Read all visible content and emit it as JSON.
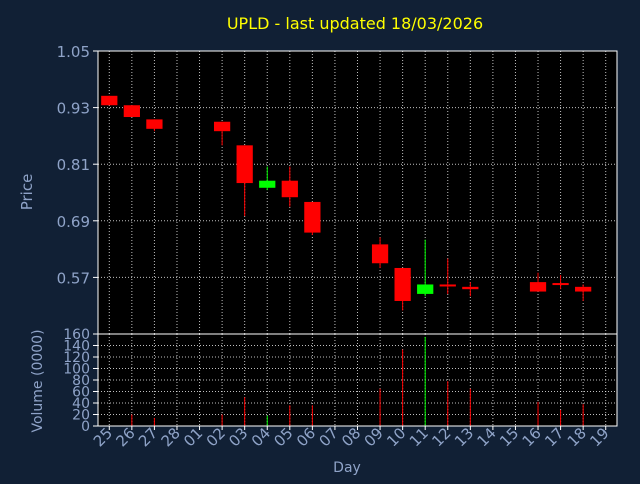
{
  "title": "UPLD - last updated 18/03/2026",
  "colors": {
    "background": "#112035",
    "plot_background": "#000000",
    "grid": "#ffffff",
    "axis_text": "#8fa3c8",
    "title_text": "#ffff00",
    "label_text": "#8fa3c8",
    "up": "#00ff00",
    "down": "#ff0000"
  },
  "chart_data": [
    {
      "type": "candlestick",
      "ylabel": "Price",
      "ylim": [
        0.45,
        1.05
      ],
      "yticks": [
        "0.57",
        "0.69",
        "0.81",
        "0.93",
        "1.05"
      ],
      "grid": true,
      "x_ticks": [
        "25",
        "26",
        "27",
        "28",
        "01",
        "02",
        "03",
        "04",
        "05",
        "06",
        "07",
        "08",
        "09",
        "10",
        "11",
        "12",
        "13",
        "14",
        "15",
        "16",
        "17",
        "18",
        "19"
      ],
      "candles": [
        {
          "day": "25",
          "open": 0.955,
          "high": 0.955,
          "low": 0.935,
          "close": 0.935
        },
        {
          "day": "26",
          "open": 0.935,
          "high": 0.935,
          "low": 0.915,
          "close": 0.91
        },
        {
          "day": "27",
          "open": 0.905,
          "high": 0.905,
          "low": 0.88,
          "close": 0.885
        },
        {
          "day": "02",
          "open": 0.9,
          "high": 0.9,
          "low": 0.85,
          "close": 0.88
        },
        {
          "day": "03",
          "open": 0.85,
          "high": 0.85,
          "low": 0.7,
          "close": 0.77
        },
        {
          "day": "04",
          "open": 0.76,
          "high": 0.805,
          "low": 0.755,
          "close": 0.775
        },
        {
          "day": "05",
          "open": 0.775,
          "high": 0.805,
          "low": 0.72,
          "close": 0.74
        },
        {
          "day": "06",
          "open": 0.73,
          "high": 0.73,
          "low": 0.66,
          "close": 0.665
        },
        {
          "day": "09",
          "open": 0.64,
          "high": 0.655,
          "low": 0.59,
          "close": 0.6
        },
        {
          "day": "10",
          "open": 0.59,
          "high": 0.59,
          "low": 0.5,
          "close": 0.52
        },
        {
          "day": "11",
          "open": 0.535,
          "high": 0.65,
          "low": 0.53,
          "close": 0.555
        },
        {
          "day": "12",
          "open": 0.555,
          "high": 0.61,
          "low": 0.535,
          "close": 0.552
        },
        {
          "day": "13",
          "open": 0.55,
          "high": 0.56,
          "low": 0.53,
          "close": 0.545
        },
        {
          "day": "16",
          "open": 0.56,
          "high": 0.58,
          "low": 0.54,
          "close": 0.54
        },
        {
          "day": "17",
          "open": 0.558,
          "high": 0.575,
          "low": 0.545,
          "close": 0.555
        },
        {
          "day": "18",
          "open": 0.55,
          "high": 0.555,
          "low": 0.52,
          "close": 0.54
        }
      ]
    },
    {
      "type": "bar",
      "ylabel": "Volume (0000)",
      "ylim": [
        0,
        160
      ],
      "yticks": [
        "0",
        "20",
        "40",
        "60",
        "80",
        "100",
        "120",
        "140",
        "160"
      ],
      "xlabel": "Day",
      "x_ticks": [
        "25",
        "26",
        "27",
        "28",
        "01",
        "02",
        "03",
        "04",
        "05",
        "06",
        "07",
        "08",
        "09",
        "10",
        "11",
        "12",
        "13",
        "14",
        "15",
        "16",
        "17",
        "18",
        "19"
      ],
      "bars": [
        {
          "day": "26",
          "value": 20,
          "color": "down"
        },
        {
          "day": "27",
          "value": 14,
          "color": "down"
        },
        {
          "day": "02",
          "value": 20,
          "color": "down"
        },
        {
          "day": "03",
          "value": 50,
          "color": "down"
        },
        {
          "day": "04",
          "value": 18,
          "color": "up"
        },
        {
          "day": "05",
          "value": 36,
          "color": "down"
        },
        {
          "day": "06",
          "value": 36,
          "color": "down"
        },
        {
          "day": "09",
          "value": 65,
          "color": "down"
        },
        {
          "day": "10",
          "value": 133,
          "color": "down"
        },
        {
          "day": "11",
          "value": 155,
          "color": "up"
        },
        {
          "day": "12",
          "value": 78,
          "color": "down"
        },
        {
          "day": "13",
          "value": 65,
          "color": "down"
        },
        {
          "day": "16",
          "value": 42,
          "color": "down"
        },
        {
          "day": "17",
          "value": 28,
          "color": "down"
        },
        {
          "day": "18",
          "value": 38,
          "color": "down"
        }
      ]
    }
  ]
}
